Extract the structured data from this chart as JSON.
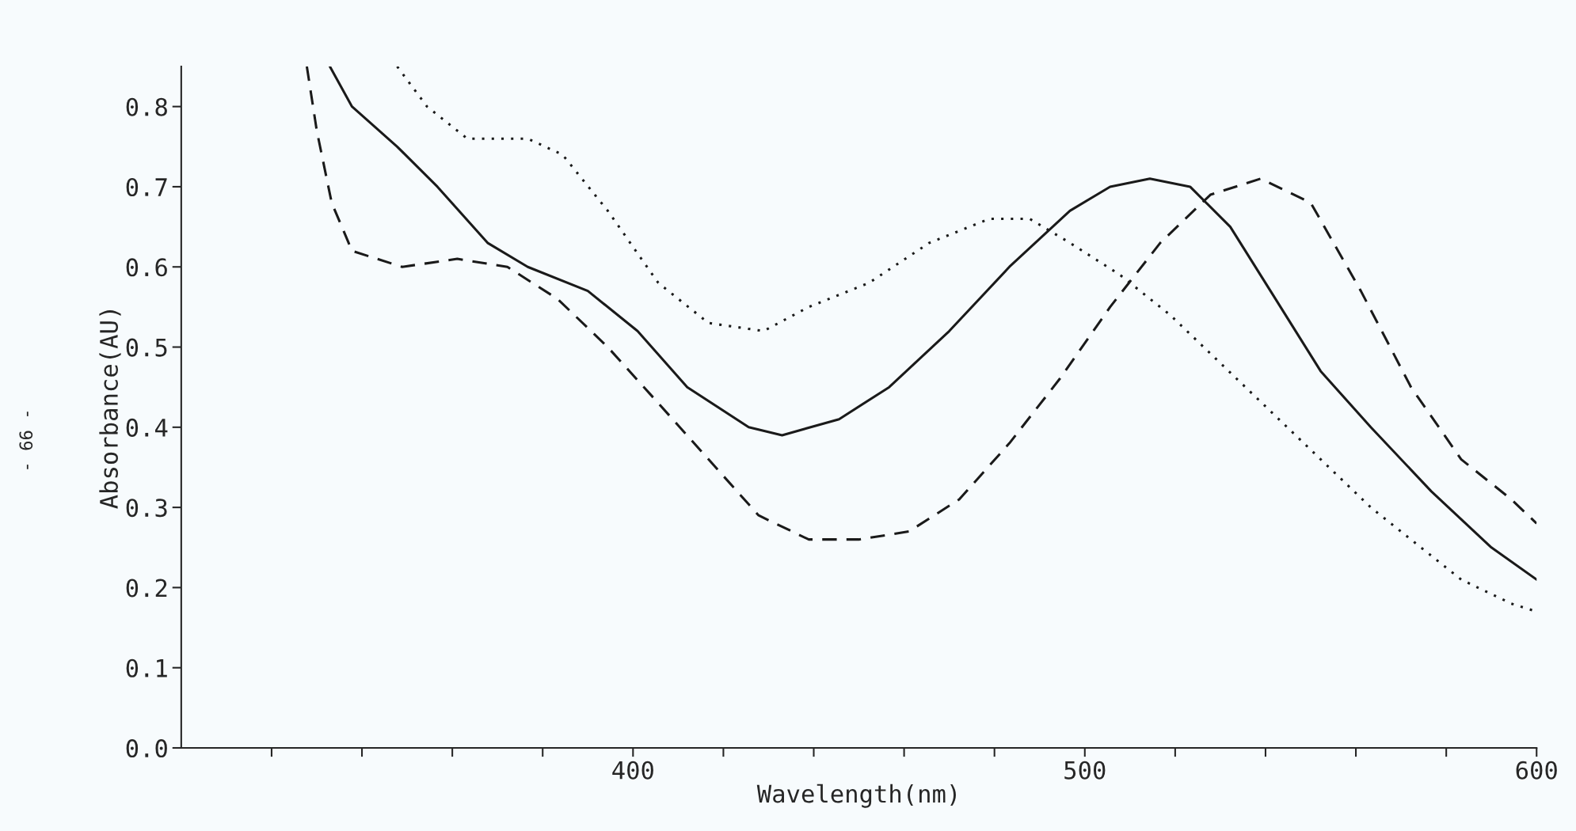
{
  "chart_data": {
    "type": "line",
    "xlabel": "Wavelength(nm)",
    "ylabel": "Absorbance(AU)",
    "xlim": [
      300,
      600
    ],
    "ylim": [
      0,
      0.85
    ],
    "xticks": [
      {
        "value": 320,
        "label": null
      },
      {
        "value": 340,
        "label": null
      },
      {
        "value": 360,
        "label": null
      },
      {
        "value": 380,
        "label": null
      },
      400,
      {
        "value": 420,
        "label": null
      },
      {
        "value": 440,
        "label": null
      },
      {
        "value": 460,
        "label": null
      },
      {
        "value": 480,
        "label": null
      },
      500,
      {
        "value": 520,
        "label": null
      },
      {
        "value": 540,
        "label": null
      },
      {
        "value": 560,
        "label": null
      },
      {
        "value": 580,
        "label": null
      },
      600
    ],
    "yticks": [
      {
        "value": 0,
        "label": "0.0"
      },
      0.1,
      0.2,
      0.3,
      0.4,
      0.5,
      0.6,
      0.7,
      0.8
    ],
    "grid": false,
    "marker": "none",
    "annotations": [
      "- 66 -"
    ],
    "series": [
      {
        "color": "#1a1a1a",
        "line_style": "solid",
        "x": [
          332.9,
          337.8,
          347.8,
          356.7,
          367.8,
          376.7,
          390,
          401,
          412,
          425.6,
          433,
          445.6,
          456.7,
          470,
          483.3,
          496.7,
          505.6,
          514.4,
          523.3,
          532.2,
          541.1,
          552.2,
          563.3,
          576.7,
          590,
          600
        ],
        "values": [
          0.85,
          0.8,
          0.75,
          0.7,
          0.63,
          0.6,
          0.57,
          0.52,
          0.45,
          0.4,
          0.39,
          0.41,
          0.45,
          0.52,
          0.6,
          0.67,
          0.7,
          0.71,
          0.7,
          0.65,
          0.57,
          0.47,
          0.4,
          0.32,
          0.25,
          0.21
        ]
      },
      {
        "color": "#1a1a1a",
        "line_style": "dashed",
        "x": [
          327.8,
          330,
          333.3,
          337.8,
          348.9,
          361.1,
          372.2,
          383.3,
          394.4,
          405.6,
          416.7,
          427.8,
          438.9,
          450,
          461.1,
          472.2,
          483.3,
          494.4,
          505.6,
          516.7,
          527.8,
          538.9,
          550,
          561.1,
          572.2,
          583.3,
          594.4,
          600
        ],
        "values": [
          0.85,
          0.77,
          0.68,
          0.62,
          0.6,
          0.61,
          0.6,
          0.56,
          0.5,
          0.43,
          0.36,
          0.29,
          0.26,
          0.26,
          0.27,
          0.31,
          0.38,
          0.46,
          0.55,
          0.63,
          0.69,
          0.71,
          0.68,
          0.57,
          0.45,
          0.36,
          0.31,
          0.28
        ]
      },
      {
        "color": "#1a1a1a",
        "line_style": "dotted",
        "x": [
          347.8,
          354.4,
          363.3,
          376.7,
          384.4,
          394.4,
          405.6,
          416.7,
          428.9,
          438.9,
          452.2,
          465.6,
          478.9,
          487.8,
          496.7,
          507.8,
          518.9,
          530,
          541.1,
          552.2,
          563.3,
          574.4,
          583.3,
          594.4,
          600
        ],
        "values": [
          0.85,
          0.8,
          0.76,
          0.76,
          0.74,
          0.67,
          0.58,
          0.53,
          0.52,
          0.55,
          0.58,
          0.63,
          0.66,
          0.66,
          0.63,
          0.59,
          0.54,
          0.48,
          0.42,
          0.36,
          0.3,
          0.25,
          0.21,
          0.18,
          0.17
        ]
      }
    ]
  }
}
